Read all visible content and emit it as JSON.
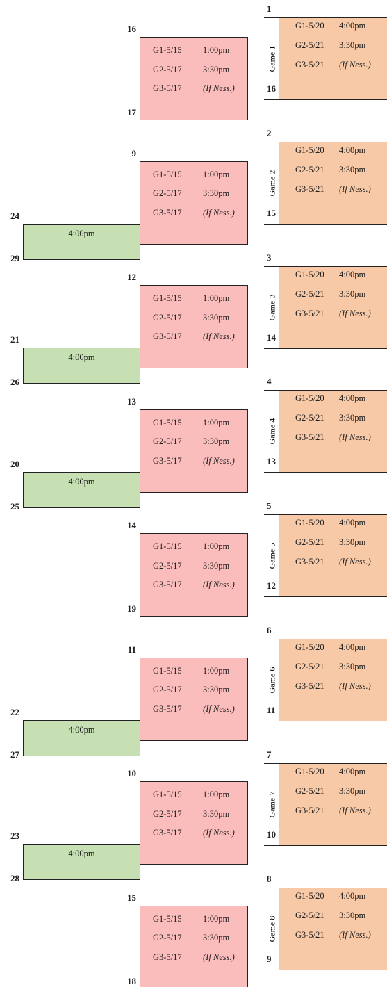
{
  "right_games": [
    {
      "label": "Game 1",
      "top_seed": 1,
      "bottom_seed": 16,
      "lines": [
        [
          "G1-5/20",
          "4:00pm"
        ],
        [
          "G2-5/21",
          "3:30pm"
        ],
        [
          "G3-5/21",
          "(If Ness.)"
        ]
      ]
    },
    {
      "label": "Game 2",
      "top_seed": 2,
      "bottom_seed": 15,
      "lines": [
        [
          "G1-5/20",
          "4:00pm"
        ],
        [
          "G2-5/21",
          "3:30pm"
        ],
        [
          "G3-5/21",
          "(If Ness.)"
        ]
      ]
    },
    {
      "label": "Game 3",
      "top_seed": 3,
      "bottom_seed": 14,
      "lines": [
        [
          "G1-5/20",
          "4:00pm"
        ],
        [
          "G2-5/21",
          "3:30pm"
        ],
        [
          "G3-5/21",
          "(If Ness.)"
        ]
      ]
    },
    {
      "label": "Game 4",
      "top_seed": 4,
      "bottom_seed": 13,
      "lines": [
        [
          "G1-5/20",
          "4:00pm"
        ],
        [
          "G2-5/21",
          "3:30pm"
        ],
        [
          "G3-5/21",
          "(If Ness.)"
        ]
      ]
    },
    {
      "label": "Game 5",
      "top_seed": 5,
      "bottom_seed": 12,
      "lines": [
        [
          "G1-5/20",
          "4:00pm"
        ],
        [
          "G2-5/21",
          "3:30pm"
        ],
        [
          "G3-5/21",
          "(If Ness.)"
        ]
      ]
    },
    {
      "label": "Game 6",
      "top_seed": 6,
      "bottom_seed": 11,
      "lines": [
        [
          "G1-5/20",
          "4:00pm"
        ],
        [
          "G2-5/21",
          "3:30pm"
        ],
        [
          "G3-5/21",
          "(If Ness.)"
        ]
      ]
    },
    {
      "label": "Game 7",
      "top_seed": 7,
      "bottom_seed": 10,
      "lines": [
        [
          "G1-5/20",
          "4:00pm"
        ],
        [
          "G2-5/21",
          "3:30pm"
        ],
        [
          "G3-5/21",
          "(If Ness.)"
        ]
      ]
    },
    {
      "label": "Game 8",
      "top_seed": 8,
      "bottom_seed": 9,
      "lines": [
        [
          "G1-5/20",
          "4:00pm"
        ],
        [
          "G2-5/21",
          "3:30pm"
        ],
        [
          "G3-5/21",
          "(If Ness.)"
        ]
      ]
    }
  ],
  "left_series": [
    {
      "top_seed": 16,
      "bottom_seed": 17,
      "lines": [
        [
          "G1-5/15",
          "1:00pm"
        ],
        [
          "G2-5/17",
          "3:30pm"
        ],
        [
          "G3-5/17",
          "(If Ness.)"
        ]
      ]
    },
    {
      "top_seed": 9,
      "lines": [
        [
          "G1-5/15",
          "1:00pm"
        ],
        [
          "G2-5/17",
          "3:30pm"
        ],
        [
          "G3-5/17",
          "(If Ness.)"
        ]
      ],
      "play_in": {
        "top_seed": 24,
        "bottom_seed": 29,
        "time": "4:00pm"
      }
    },
    {
      "top_seed": 12,
      "lines": [
        [
          "G1-5/15",
          "1:00pm"
        ],
        [
          "G2-5/17",
          "3:30pm"
        ],
        [
          "G3-5/17",
          "(If Ness.)"
        ]
      ],
      "play_in": {
        "top_seed": 21,
        "bottom_seed": 26,
        "time": "4:00pm"
      }
    },
    {
      "top_seed": 13,
      "lines": [
        [
          "G1-5/15",
          "1:00pm"
        ],
        [
          "G2-5/17",
          "3:30pm"
        ],
        [
          "G3-5/17",
          "(If Ness.)"
        ]
      ],
      "play_in": {
        "top_seed": 20,
        "bottom_seed": 25,
        "time": "4:00pm"
      }
    },
    {
      "top_seed": 14,
      "bottom_seed": 19,
      "lines": [
        [
          "G1-5/15",
          "1:00pm"
        ],
        [
          "G2-5/17",
          "3:30pm"
        ],
        [
          "G3-5/17",
          "(If Ness.)"
        ]
      ]
    },
    {
      "top_seed": 11,
      "lines": [
        [
          "G1-5/15",
          "1:00pm"
        ],
        [
          "G2-5/17",
          "3:30pm"
        ],
        [
          "G3-5/17",
          "(If Ness.)"
        ]
      ],
      "play_in": {
        "top_seed": 22,
        "bottom_seed": 27,
        "time": "4:00pm"
      }
    },
    {
      "top_seed": 10,
      "lines": [
        [
          "G1-5/15",
          "1:00pm"
        ],
        [
          "G2-5/17",
          "3:30pm"
        ],
        [
          "G3-5/17",
          "(If Ness.)"
        ]
      ],
      "play_in": {
        "top_seed": 23,
        "bottom_seed": 28,
        "time": "4:00pm"
      }
    },
    {
      "top_seed": 15,
      "bottom_seed": 18,
      "lines": [
        [
          "G1-5/15",
          "1:00pm"
        ],
        [
          "G2-5/17",
          "3:30pm"
        ],
        [
          "G3-5/17",
          "(If Ness.)"
        ]
      ]
    }
  ]
}
